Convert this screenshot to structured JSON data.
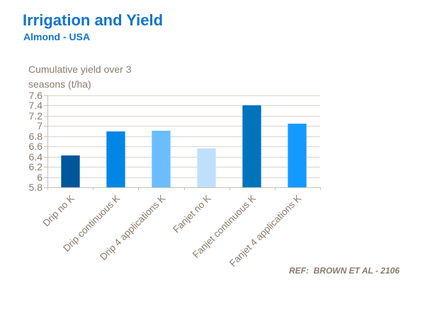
{
  "header": {
    "title": "Irrigation and Yield",
    "subtitle": "Almond - USA"
  },
  "footer": {
    "ref": "REF:  BROWN ET AL - 2106"
  },
  "colors": {
    "title_blue": "#1374cc",
    "text_brown": "#8a7a6a",
    "gridline": "#d9d4cc",
    "axis": "#c6c1b8"
  },
  "chart_data": {
    "type": "bar",
    "title": "Irrigation and Yield",
    "subtitle": "Almond - USA",
    "ylabel": "Cumulative yield over 3\nseasons (t/ha)",
    "xlabel": "",
    "categories": [
      "Drip no K",
      "Drip continuous K",
      "Drip 4 applications K",
      "Fanjet no K",
      "Fanjet continuous K",
      "Fanjet 4 applications K"
    ],
    "values": [
      6.42,
      6.9,
      6.91,
      6.56,
      7.4,
      7.04
    ],
    "bar_colors": [
      "#00579b",
      "#0086e5",
      "#6abeff",
      "#bfe0fc",
      "#0073bd",
      "#149aff"
    ],
    "ylim": [
      5.8,
      7.6
    ],
    "ytick_step": 0.2,
    "ytick_labels": [
      "7.6",
      "7.4",
      "7.2",
      "7",
      "6.8",
      "6.6",
      "6.4",
      "6.2",
      "6",
      "5.8"
    ],
    "grid": true,
    "legend": "none",
    "reference": "REF:  BROWN ET AL - 2106"
  }
}
